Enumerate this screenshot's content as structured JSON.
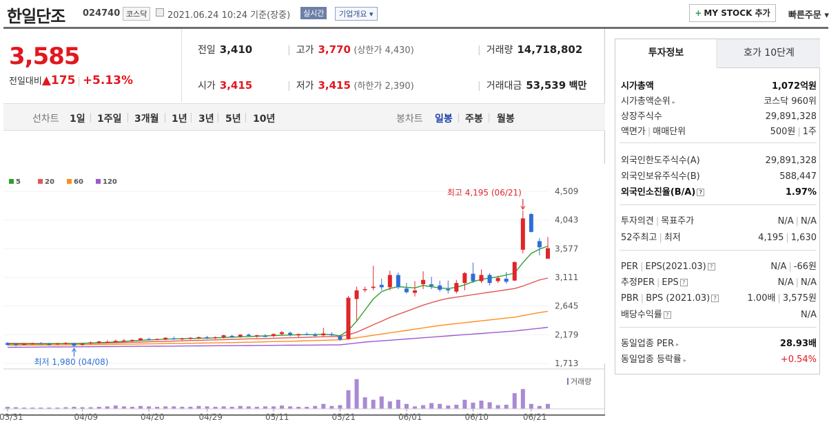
{
  "header": {
    "title": "한일단조",
    "code": "024740",
    "market": "코스닥",
    "date": "2021.06.24 10:24",
    "date_suffix": "기준(장중)",
    "live_label": "실시간",
    "corp_label": "기업개요 ▾",
    "mystock_label": "MY STOCK 추가",
    "quick_order_label": "빠른주문 ▾"
  },
  "price": {
    "current": "3,585",
    "change_label": "전일대비",
    "change_arrow": "▲",
    "change": "175",
    "change_pct": "+5.13%"
  },
  "stats": {
    "prev_close": {
      "label": "전일",
      "value": "3,410"
    },
    "high": {
      "label": "고가",
      "value": "3,770",
      "sub": "(상한가 4,430)"
    },
    "volume": {
      "label": "거래량",
      "value": "14,718,802"
    },
    "open": {
      "label": "시가",
      "value": "3,415"
    },
    "low": {
      "label": "저가",
      "value": "3,415",
      "sub": "(하한가 2,390)"
    },
    "amount": {
      "label": "거래대금",
      "value": "53,539",
      "unit": "백만"
    }
  },
  "range_bar": {
    "line_chart_label": "선차트",
    "periods": [
      "1일",
      "1주일",
      "3개월",
      "1년",
      "3년",
      "5년",
      "10년"
    ],
    "candle_chart_label": "봉차트",
    "candle_periods": [
      "일봉",
      "주봉",
      "월봉"
    ],
    "selected_candle": "일봉"
  },
  "chart_data": {
    "type": "candlestick",
    "legend": [
      {
        "name": "5",
        "color": "#2ca02c"
      },
      {
        "name": "20",
        "color": "#e45656"
      },
      {
        "name": "60",
        "color": "#ff8c1a"
      },
      {
        "name": "120",
        "color": "#9b59d0"
      }
    ],
    "y_ticks": [
      "4,509",
      "4,043",
      "3,577",
      "3,111",
      "2,645",
      "2,179",
      "1,713"
    ],
    "ylim": [
      1713,
      4509
    ],
    "x_ticks": [
      "03/31",
      "04/09",
      "04/20",
      "04/29",
      "05/11",
      "05/21",
      "06/01",
      "06/10",
      "06/21"
    ],
    "max_label": "최고 4,195 (06/21)",
    "min_label": "최저 1,980 (04/08)",
    "volume_label": "거래량",
    "candles": [
      [
        2045,
        2060,
        2000,
        2015
      ],
      [
        2030,
        2045,
        1990,
        2025
      ],
      [
        2030,
        2045,
        2020,
        2030
      ],
      [
        2035,
        2050,
        2020,
        2040
      ],
      [
        2040,
        2060,
        2025,
        2030
      ],
      [
        2030,
        2050,
        2000,
        2020
      ],
      [
        2030,
        2050,
        2010,
        2040
      ],
      [
        2035,
        2060,
        2020,
        2045
      ],
      [
        2040,
        2050,
        1980,
        2000
      ],
      [
        2020,
        2050,
        2000,
        2030
      ],
      [
        2040,
        2070,
        2020,
        2055
      ],
      [
        2050,
        2080,
        2030,
        2070
      ],
      [
        2060,
        2090,
        2050,
        2065
      ],
      [
        2070,
        2100,
        2050,
        2080
      ],
      [
        2080,
        2110,
        2060,
        2085
      ],
      [
        2080,
        2100,
        2060,
        2095
      ],
      [
        2090,
        2130,
        2080,
        2120
      ],
      [
        2110,
        2130,
        2090,
        2100
      ],
      [
        2100,
        2120,
        2090,
        2110
      ],
      [
        2100,
        2140,
        2090,
        2130
      ],
      [
        2120,
        2150,
        2100,
        2110
      ],
      [
        2110,
        2130,
        2090,
        2120
      ],
      [
        2120,
        2140,
        2100,
        2130
      ],
      [
        2125,
        2150,
        2110,
        2140
      ],
      [
        2140,
        2160,
        2110,
        2120
      ],
      [
        2130,
        2150,
        2110,
        2140
      ],
      [
        2140,
        2180,
        2120,
        2170
      ],
      [
        2160,
        2180,
        2130,
        2140
      ],
      [
        2150,
        2190,
        2130,
        2180
      ],
      [
        2180,
        2200,
        2150,
        2160
      ],
      [
        2150,
        2180,
        2130,
        2170
      ],
      [
        2160,
        2190,
        2140,
        2150
      ],
      [
        2160,
        2200,
        2140,
        2190
      ],
      [
        2190,
        2240,
        2170,
        2220
      ],
      [
        2210,
        2230,
        2150,
        2180
      ],
      [
        2170,
        2200,
        2140,
        2190
      ],
      [
        2190,
        2220,
        2170,
        2180
      ],
      [
        2180,
        2210,
        2140,
        2160
      ],
      [
        2170,
        2290,
        2150,
        2200
      ],
      [
        2190,
        2220,
        2150,
        2170
      ],
      [
        2150,
        2180,
        2080,
        2100
      ],
      [
        2110,
        2810,
        2100,
        2780
      ],
      [
        2760,
        2960,
        2400,
        2900
      ],
      [
        2920,
        2960,
        2870,
        2920
      ],
      [
        2940,
        3300,
        2900,
        2960
      ],
      [
        2990,
        3090,
        2900,
        2950
      ],
      [
        2950,
        3220,
        2900,
        3150
      ],
      [
        3150,
        3190,
        2920,
        2950
      ],
      [
        2930,
        3020,
        2850,
        2870
      ],
      [
        2860,
        3050,
        2800,
        2900
      ],
      [
        3000,
        3210,
        2920,
        3070
      ],
      [
        3000,
        3120,
        2920,
        2970
      ],
      [
        2980,
        3060,
        2880,
        2910
      ],
      [
        2920,
        3060,
        2850,
        2900
      ],
      [
        2880,
        3070,
        2850,
        3020
      ],
      [
        3020,
        3200,
        2900,
        3180
      ],
      [
        3170,
        3350,
        3020,
        3050
      ],
      [
        3050,
        3240,
        3020,
        3150
      ],
      [
        3150,
        3180,
        2980,
        3020
      ],
      [
        3050,
        3140,
        3020,
        3100
      ],
      [
        3090,
        3200,
        3010,
        3040
      ],
      [
        3060,
        3370,
        3050,
        3360
      ],
      [
        3560,
        4195,
        3500,
        4070
      ],
      [
        4140,
        4160,
        3840,
        3850
      ],
      [
        3700,
        3750,
        3470,
        3600
      ],
      [
        3415,
        3770,
        3415,
        3585
      ]
    ],
    "volumes": [
      0.05,
      0.04,
      0.03,
      0.03,
      0.03,
      0.03,
      0.03,
      0.04,
      0.05,
      0.04,
      0.04,
      0.05,
      0.06,
      0.08,
      0.06,
      0.05,
      0.07,
      0.06,
      0.05,
      0.06,
      0.06,
      0.05,
      0.05,
      0.07,
      0.06,
      0.05,
      0.06,
      0.05,
      0.07,
      0.06,
      0.05,
      0.06,
      0.06,
      0.08,
      0.06,
      0.05,
      0.05,
      0.07,
      0.12,
      0.07,
      0.09,
      0.45,
      0.72,
      0.28,
      0.22,
      0.3,
      0.18,
      0.22,
      0.12,
      0.06,
      0.09,
      0.14,
      0.12,
      0.08,
      0.1,
      0.22,
      0.15,
      0.2,
      0.16,
      0.09,
      0.1,
      0.38,
      0.48,
      0.12,
      0.07,
      0.12
    ],
    "ma5": [
      2030,
      2028,
      2030,
      2032,
      2030,
      2032,
      2035,
      2036,
      2035,
      2040,
      2045,
      2050,
      2055,
      2062,
      2070,
      2080,
      2088,
      2095,
      2100,
      2108,
      2112,
      2115,
      2118,
      2122,
      2125,
      2128,
      2135,
      2140,
      2145,
      2150,
      2155,
      2160,
      2165,
      2170,
      2175,
      2178,
      2180,
      2182,
      2185,
      2180,
      2160,
      2250,
      2400,
      2580,
      2760,
      2880,
      2930,
      2960,
      2950,
      2940,
      2980,
      2960,
      2940,
      2930,
      2950,
      2990,
      3040,
      3080,
      3100,
      3120,
      3150,
      3180,
      3350,
      3500,
      3570,
      3620
    ],
    "ma20": [
      2040,
      2040,
      2038,
      2037,
      2036,
      2036,
      2035,
      2036,
      2037,
      2038,
      2040,
      2042,
      2045,
      2048,
      2052,
      2056,
      2060,
      2065,
      2068,
      2072,
      2076,
      2080,
      2085,
      2088,
      2092,
      2096,
      2100,
      2104,
      2108,
      2112,
      2115,
      2118,
      2122,
      2126,
      2130,
      2134,
      2138,
      2142,
      2146,
      2150,
      2150,
      2180,
      2220,
      2280,
      2340,
      2400,
      2460,
      2510,
      2560,
      2610,
      2660,
      2700,
      2740,
      2770,
      2790,
      2810,
      2830,
      2850,
      2870,
      2890,
      2910,
      2930,
      2970,
      3020,
      3070,
      3100
    ],
    "ma60": [
      2010,
      2010,
      2011,
      2012,
      2012,
      2013,
      2014,
      2015,
      2016,
      2017,
      2018,
      2020,
      2021,
      2023,
      2025,
      2027,
      2029,
      2031,
      2033,
      2035,
      2037,
      2039,
      2041,
      2043,
      2045,
      2047,
      2050,
      2052,
      2055,
      2058,
      2061,
      2064,
      2067,
      2070,
      2073,
      2077,
      2081,
      2085,
      2089,
      2093,
      2097,
      2110,
      2130,
      2150,
      2170,
      2190,
      2210,
      2230,
      2250,
      2270,
      2290,
      2310,
      2330,
      2345,
      2360,
      2375,
      2390,
      2405,
      2420,
      2435,
      2450,
      2465,
      2490,
      2515,
      2540,
      2560
    ],
    "ma120": [
      1975,
      1976,
      1977,
      1978,
      1979,
      1980,
      1981,
      1982,
      1983,
      1984,
      1985,
      1986,
      1987,
      1988,
      1989,
      1990,
      1991,
      1992,
      1993,
      1994,
      1995,
      1996,
      1997,
      1998,
      1999,
      2000,
      2001,
      2002,
      2003,
      2004,
      2005,
      2006,
      2007,
      2008,
      2009,
      2010,
      2011,
      2012,
      2013,
      2014,
      2015,
      2030,
      2045,
      2060,
      2070,
      2080,
      2090,
      2100,
      2110,
      2120,
      2130,
      2140,
      2150,
      2160,
      2170,
      2180,
      2190,
      2200,
      2210,
      2220,
      2230,
      2240,
      2255,
      2270,
      2285,
      2300
    ]
  },
  "invest_panel": {
    "tab_info": "투자정보",
    "tab_quotes": "호가 10단계",
    "rows": [
      {
        "k": "시가총액",
        "v": "1,072억원",
        "bold": true
      },
      {
        "k": "시가총액순위",
        "v": "코스닥 960위",
        "arrow": true
      },
      {
        "k": "상장주식수",
        "v": "29,891,328"
      },
      {
        "k": "액면가",
        "k2": "매매단위",
        "v": "500원",
        "v2": "1주"
      },
      {
        "k": "외국인한도주식수(A)",
        "v": "29,891,328"
      },
      {
        "k": "외국인보유주식수(B)",
        "v": "588,447"
      },
      {
        "k": "외국인소진율(B/A)",
        "v": "1.97%",
        "bold": true,
        "help": true
      },
      {
        "k": "투자의견",
        "k2": "목표주가",
        "v": "N/A",
        "v2": "N/A"
      },
      {
        "k": "52주최고",
        "k2": "최저",
        "v": "4,195",
        "v2": "1,630"
      },
      {
        "k": "PER",
        "k2": "EPS(2021.03)",
        "v": "N/A",
        "v2": "-66원",
        "help": true
      },
      {
        "k": "추정PER",
        "k2": "EPS",
        "v": "N/A",
        "v2": "N/A",
        "help": true
      },
      {
        "k": "PBR",
        "k2": "BPS (2021.03)",
        "v": "1.00배",
        "v2": "3,575원",
        "help": true
      },
      {
        "k": "배당수익률",
        "v": "N/A",
        "help": true
      },
      {
        "k": "동일업종 PER",
        "v": "28.93배",
        "bold_v": true,
        "arrow": true
      },
      {
        "k": "동일업종 등락률",
        "v": "+0.54%",
        "red": true,
        "arrow": true
      }
    ]
  }
}
